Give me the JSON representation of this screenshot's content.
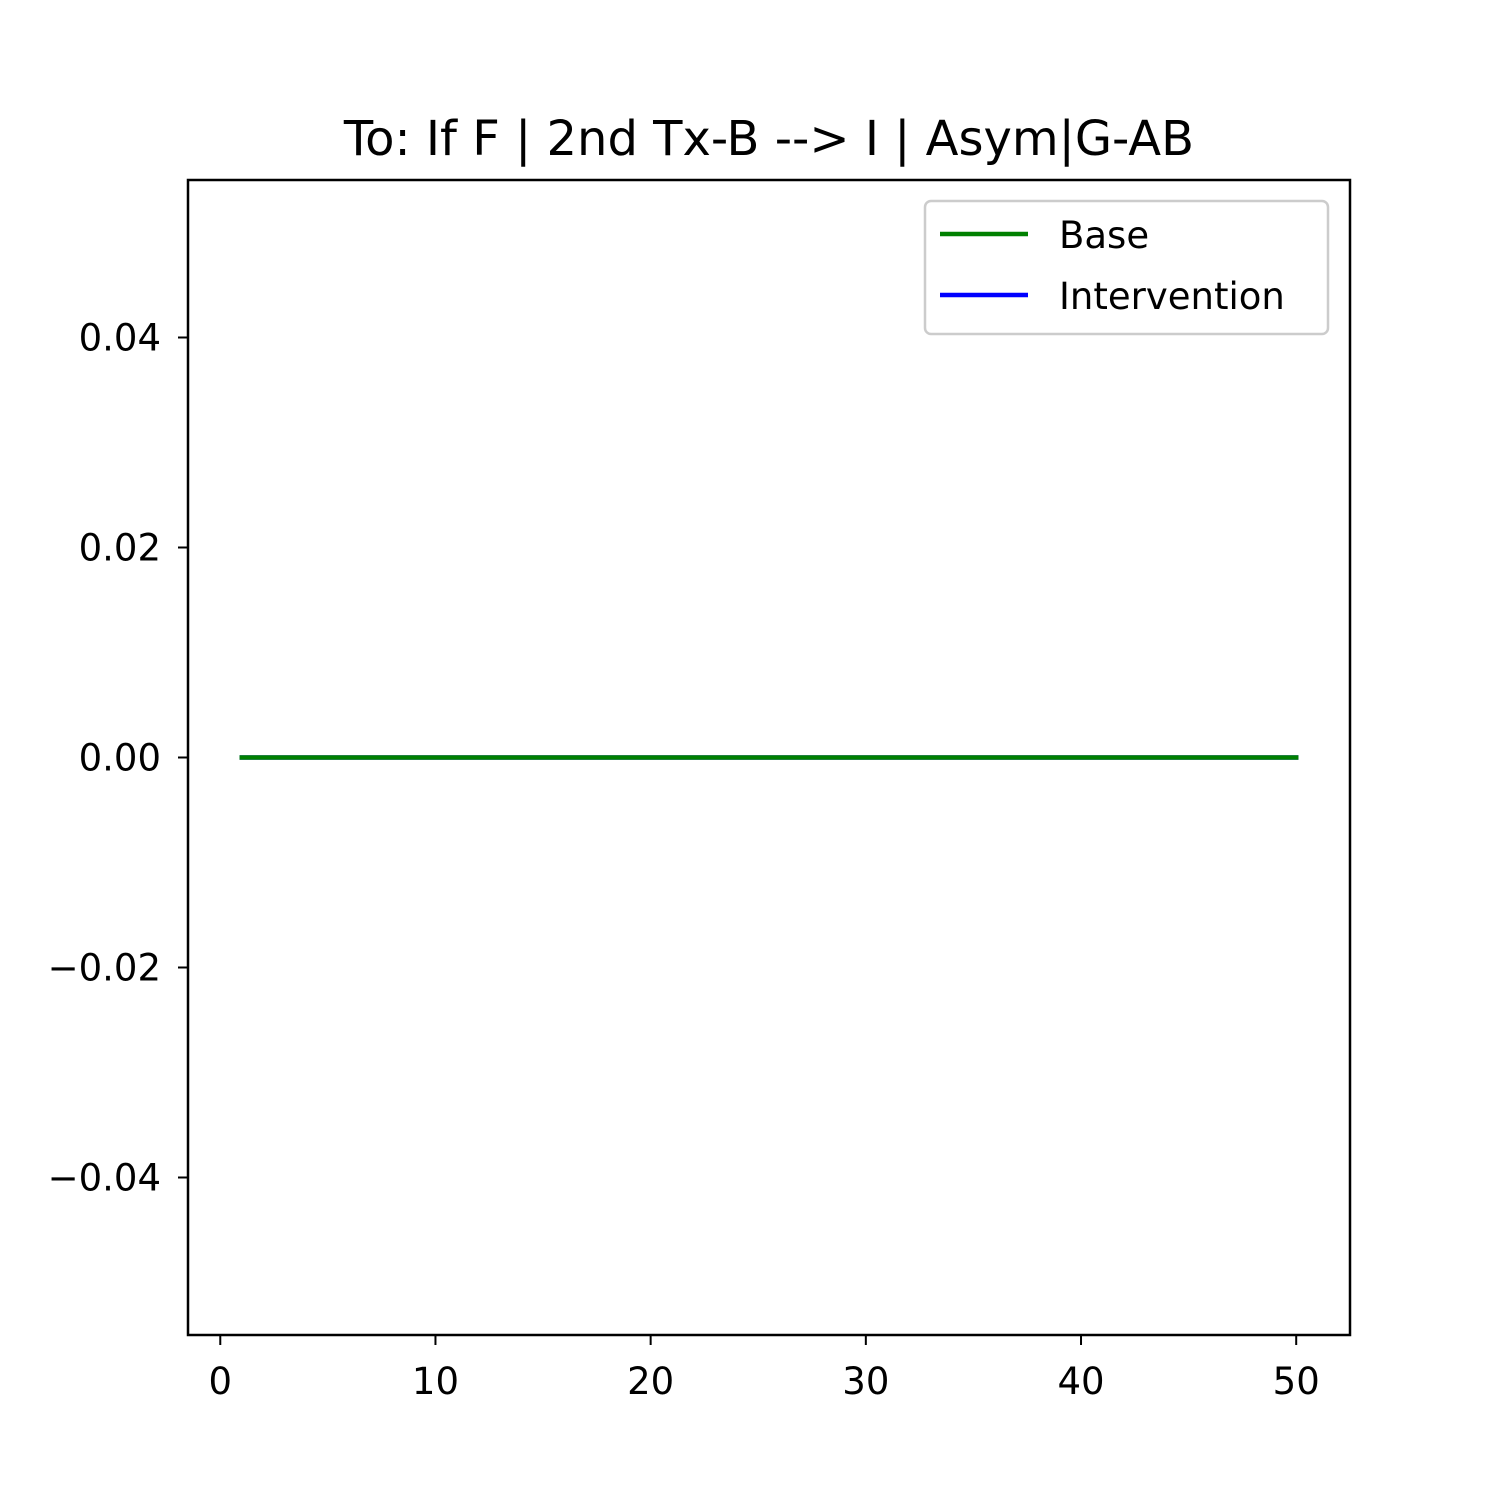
{
  "chart_data": {
    "type": "line",
    "title": "To: If F | 2nd Tx-B  --> I | Asym|G-AB",
    "xlabel": "",
    "ylabel": "",
    "xlim": [
      -1.5,
      52.5
    ],
    "ylim": [
      -0.055,
      0.055
    ],
    "xticks": [
      0,
      10,
      20,
      30,
      40,
      50
    ],
    "yticks": [
      -0.04,
      -0.02,
      0.0,
      0.02,
      0.04
    ],
    "xtick_labels": [
      "0",
      "10",
      "20",
      "30",
      "40",
      "50"
    ],
    "ytick_labels": [
      "−0.04",
      "−0.02",
      "0.00",
      "0.02",
      "0.04"
    ],
    "grid": false,
    "legend_position": "upper right",
    "series": [
      {
        "name": "Intervention",
        "color": "#0000ff",
        "x": [
          1,
          50
        ],
        "y": [
          0,
          0
        ]
      },
      {
        "name": "Base",
        "color": "#008000",
        "x": [
          1,
          50
        ],
        "y": [
          0,
          0
        ]
      }
    ],
    "legend": [
      {
        "label": "Base",
        "color": "#008000"
      },
      {
        "label": "Intervention",
        "color": "#0000ff"
      }
    ]
  }
}
